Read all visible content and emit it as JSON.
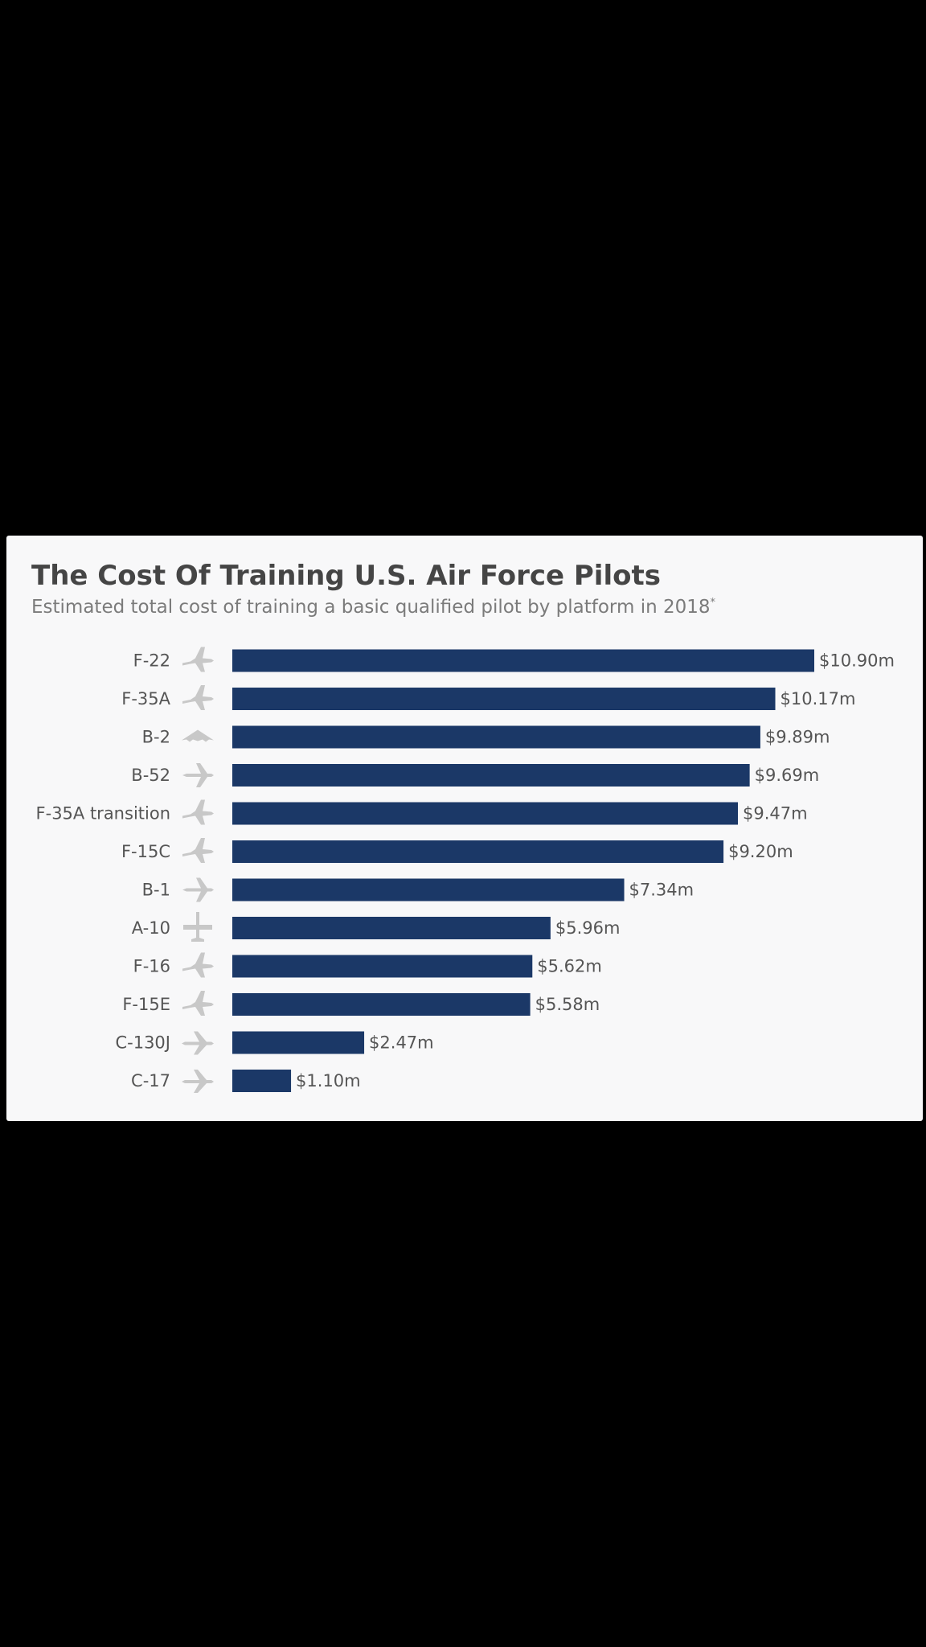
{
  "chart_data": {
    "type": "bar",
    "orientation": "horizontal",
    "title": "The Cost Of Training U.S. Air Force Pilots",
    "subtitle": "Estimated total cost of training a basic qualified pilot by platform in 2018",
    "subtitle_marker": "*",
    "xlabel": "",
    "ylabel": "",
    "xlim": [
      0,
      10.9
    ],
    "grid": false,
    "legend": "none",
    "bar_color": "#1b3867",
    "icon_color": "#c8c8c8",
    "categories": [
      "F-22",
      "F-35A",
      "B-2",
      "B-52",
      "F-35A transition",
      "F-15C",
      "B-1",
      "A-10",
      "F-16",
      "F-15E",
      "C-130J",
      "C-17"
    ],
    "icons": [
      "fighter-jet-icon",
      "fighter-jet-icon",
      "stealth-bomber-icon",
      "bomber-icon",
      "fighter-jet-icon",
      "fighter-jet-icon",
      "bomber-icon",
      "attack-aircraft-icon",
      "fighter-jet-icon",
      "fighter-jet-icon",
      "transport-aircraft-icon",
      "transport-aircraft-icon"
    ],
    "values": [
      10.9,
      10.17,
      9.89,
      9.69,
      9.47,
      9.2,
      7.34,
      5.96,
      5.62,
      5.58,
      2.47,
      1.1
    ],
    "data_labels": [
      "$10.90m",
      "$10.17m",
      "$9.89m",
      "$9.69m",
      "$9.47m",
      "$9.20m",
      "$7.34m",
      "$5.96m",
      "$5.62m",
      "$5.58m",
      "$2.47m",
      "$1.10m"
    ]
  }
}
